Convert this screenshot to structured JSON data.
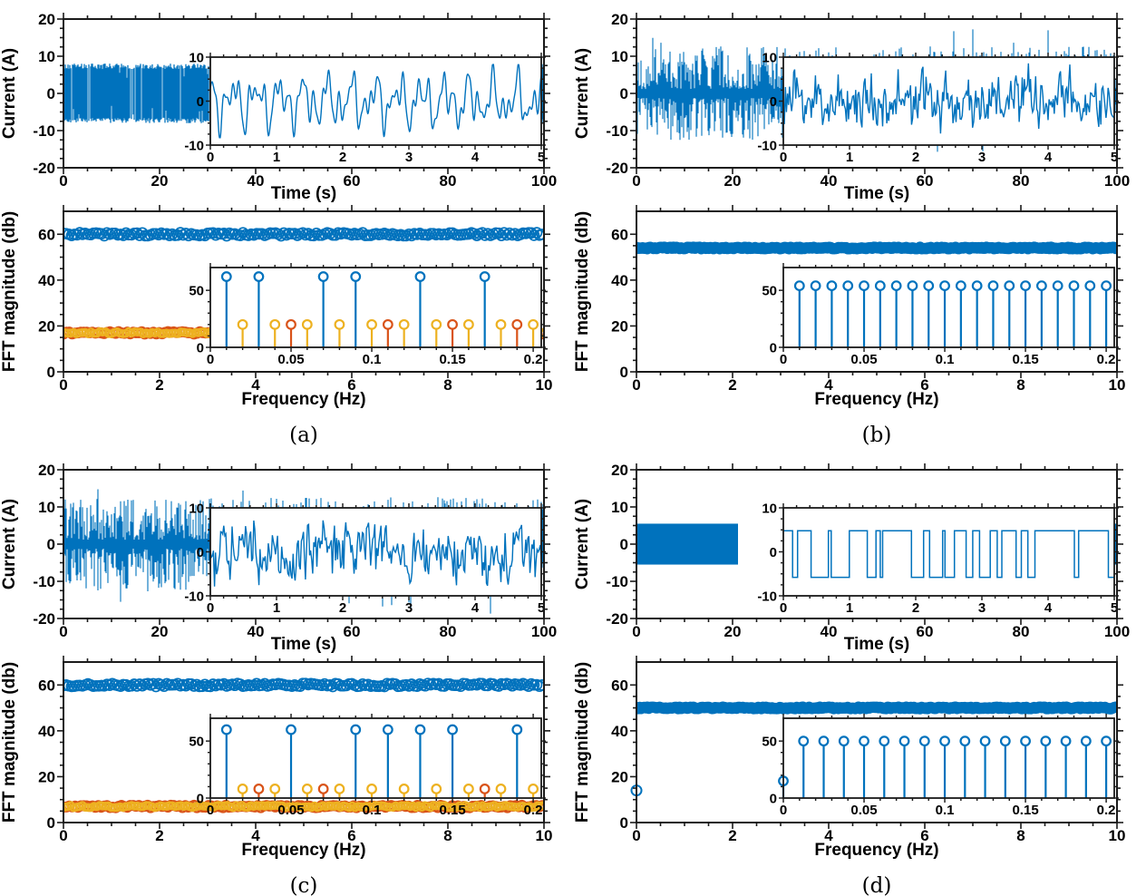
{
  "figure": {
    "background": "#ffffff"
  },
  "colors": {
    "blue": "#0072BD",
    "orange": "#D95319",
    "yellow": "#EDB120",
    "axis": "#1a1a1a",
    "text": "#000000"
  },
  "chart_data": [
    {
      "label": "(a)",
      "time": {
        "type": "line",
        "xlabel": "Time (s)",
        "ylabel": "Current (A)",
        "xlim": [
          0,
          100
        ],
        "ylim": [
          -20,
          20
        ],
        "xticks": [
          0,
          20,
          40,
          60,
          80,
          100
        ],
        "xtick_labels": [
          "0",
          "20",
          "40",
          "60",
          "80",
          "100"
        ],
        "yticks": [
          -20,
          -10,
          0,
          10,
          20
        ],
        "ytick_labels": [
          "-20",
          "-10",
          "0",
          "10",
          "20"
        ],
        "signal": {
          "kind": "band-noise",
          "amp": 8,
          "seed": 11
        },
        "inset": {
          "xlim": [
            0,
            5
          ],
          "ylim": [
            -10,
            10
          ],
          "xticks": [
            0,
            1,
            2,
            3,
            4,
            5
          ],
          "xtick_labels": [
            "0",
            "1",
            "2",
            "3",
            "4",
            "5"
          ],
          "yticks": [
            -10,
            0,
            10
          ],
          "ytick_labels": [
            "-10",
            "0",
            "10"
          ],
          "signal": {
            "kind": "multisine",
            "seed": 12,
            "clip": 8.3,
            "components": [
              [
                3.3,
                2.8
              ],
              [
                2.7,
                5.2
              ],
              [
                2.0,
                8.1
              ],
              [
                1.2,
                12.5
              ]
            ]
          }
        }
      },
      "fft": {
        "type": "stem",
        "xlabel": "Frequency (Hz)",
        "ylabel": "FFT magnitude (db)",
        "xlim": [
          0,
          10
        ],
        "ylim": [
          0,
          70
        ],
        "xticks": [
          0,
          2,
          4,
          6,
          8,
          10
        ],
        "xtick_labels": [
          "0",
          "2",
          "4",
          "6",
          "8",
          "10"
        ],
        "yticks": [
          0,
          20,
          40,
          60
        ],
        "ytick_labels": [
          "0",
          "20",
          "40",
          "60"
        ],
        "bands": [
          {
            "level": 60,
            "style": "speckled"
          },
          {
            "level": 17,
            "style": "mixed"
          }
        ],
        "markers": [],
        "inset": {
          "xlim": [
            0,
            0.205
          ],
          "ylim": [
            0,
            70
          ],
          "xticks": [
            0,
            0.05,
            0.1,
            0.15,
            0.2
          ],
          "xtick_labels": [
            "0",
            "0.05",
            "0.1",
            "0.15",
            "0.2"
          ],
          "yticks": [
            0,
            50
          ],
          "ytick_labels": [
            "0",
            "50"
          ],
          "stems": [
            [
              0.01,
              62,
              "blue"
            ],
            [
              0.02,
              20,
              "yellow"
            ],
            [
              0.03,
              62,
              "blue"
            ],
            [
              0.04,
              20,
              "yellow"
            ],
            [
              0.05,
              20,
              "orange"
            ],
            [
              0.06,
              20,
              "yellow"
            ],
            [
              0.07,
              62,
              "blue"
            ],
            [
              0.08,
              20,
              "yellow"
            ],
            [
              0.09,
              62,
              "blue"
            ],
            [
              0.1,
              20,
              "yellow"
            ],
            [
              0.11,
              20,
              "orange"
            ],
            [
              0.12,
              20,
              "yellow"
            ],
            [
              0.13,
              62,
              "blue"
            ],
            [
              0.14,
              20,
              "yellow"
            ],
            [
              0.15,
              20,
              "orange"
            ],
            [
              0.16,
              20,
              "yellow"
            ],
            [
              0.17,
              62,
              "blue"
            ],
            [
              0.18,
              20,
              "yellow"
            ],
            [
              0.19,
              20,
              "orange"
            ],
            [
              0.2,
              20,
              "yellow"
            ]
          ]
        }
      }
    },
    {
      "label": "(b)",
      "time": {
        "type": "line",
        "xlabel": "Time (s)",
        "ylabel": "Current (A)",
        "xlim": [
          0,
          100
        ],
        "ylim": [
          -20,
          20
        ],
        "xticks": [
          0,
          20,
          40,
          60,
          80,
          100
        ],
        "xtick_labels": [
          "0",
          "20",
          "40",
          "60",
          "80",
          "100"
        ],
        "yticks": [
          -20,
          -10,
          0,
          10,
          20
        ],
        "ytick_labels": [
          "-20",
          "-10",
          "0",
          "10",
          "20"
        ],
        "signal": {
          "kind": "noise",
          "spread": 10,
          "spike": 18,
          "seed": 22
        },
        "inset": {
          "xlim": [
            0,
            5
          ],
          "ylim": [
            -10,
            10
          ],
          "xticks": [
            0,
            1,
            2,
            3,
            4,
            5
          ],
          "xtick_labels": [
            "0",
            "1",
            "2",
            "3",
            "4",
            "5"
          ],
          "yticks": [
            -10,
            0,
            10
          ],
          "ytick_labels": [
            "-10",
            "0",
            "10"
          ],
          "signal": {
            "kind": "noisy-line",
            "amp": 9.7,
            "seed": 23
          }
        }
      },
      "fft": {
        "type": "stem",
        "xlabel": "Frequency (Hz)",
        "ylabel": "FFT magnitude (db)",
        "xlim": [
          0,
          10
        ],
        "ylim": [
          0,
          70
        ],
        "xticks": [
          0,
          2,
          4,
          6,
          8,
          10
        ],
        "xtick_labels": [
          "0",
          "2",
          "4",
          "6",
          "8",
          "10"
        ],
        "yticks": [
          0,
          20,
          40,
          60
        ],
        "ytick_labels": [
          "0",
          "20",
          "40",
          "60"
        ],
        "bands": [
          {
            "level": 54,
            "style": "solid"
          }
        ],
        "markers": [],
        "inset": {
          "xlim": [
            0,
            0.205
          ],
          "ylim": [
            0,
            70
          ],
          "xticks": [
            0,
            0.05,
            0.1,
            0.15,
            0.2
          ],
          "xtick_labels": [
            "0",
            "0.05",
            "0.1",
            "0.15",
            "0.2"
          ],
          "yticks": [
            0,
            50
          ],
          "ytick_labels": [
            "0",
            "50"
          ],
          "stems": [
            [
              0.01,
              54,
              "blue"
            ],
            [
              0.02,
              54,
              "blue"
            ],
            [
              0.03,
              54,
              "blue"
            ],
            [
              0.04,
              54,
              "blue"
            ],
            [
              0.05,
              54,
              "blue"
            ],
            [
              0.06,
              54,
              "blue"
            ],
            [
              0.07,
              54,
              "blue"
            ],
            [
              0.08,
              54,
              "blue"
            ],
            [
              0.09,
              54,
              "blue"
            ],
            [
              0.1,
              54,
              "blue"
            ],
            [
              0.11,
              54,
              "blue"
            ],
            [
              0.12,
              54,
              "blue"
            ],
            [
              0.13,
              54,
              "blue"
            ],
            [
              0.14,
              54,
              "blue"
            ],
            [
              0.15,
              54,
              "blue"
            ],
            [
              0.16,
              54,
              "blue"
            ],
            [
              0.17,
              54,
              "blue"
            ],
            [
              0.18,
              54,
              "blue"
            ],
            [
              0.19,
              54,
              "blue"
            ],
            [
              0.2,
              54,
              "blue"
            ]
          ]
        }
      }
    },
    {
      "label": "(c)",
      "time": {
        "type": "line",
        "xlabel": "Time (s)",
        "ylabel": "Current (A)",
        "xlim": [
          0,
          100
        ],
        "ylim": [
          -20,
          20
        ],
        "xticks": [
          0,
          20,
          40,
          60,
          80,
          100
        ],
        "xtick_labels": [
          "0",
          "20",
          "40",
          "60",
          "80",
          "100"
        ],
        "yticks": [
          -20,
          -10,
          0,
          10,
          20
        ],
        "ytick_labels": [
          "-20",
          "-10",
          "0",
          "10",
          "20"
        ],
        "signal": {
          "kind": "noise",
          "spread": 10,
          "spike": 19,
          "seed": 33
        },
        "inset": {
          "xlim": [
            0,
            5
          ],
          "ylim": [
            -10,
            10
          ],
          "xticks": [
            0,
            1,
            2,
            3,
            4,
            5
          ],
          "xtick_labels": [
            "0",
            "1",
            "2",
            "3",
            "4",
            "5"
          ],
          "yticks": [
            -10,
            0,
            10
          ],
          "ytick_labels": [
            "-10",
            "0",
            "10"
          ],
          "signal": {
            "kind": "noisy-line",
            "amp": 9.7,
            "seed": 34
          }
        }
      },
      "fft": {
        "type": "stem",
        "xlabel": "Frequency (Hz)",
        "ylabel": "FFT magnitude (db)",
        "xlim": [
          0,
          10
        ],
        "ylim": [
          0,
          70
        ],
        "xticks": [
          0,
          2,
          4,
          6,
          8,
          10
        ],
        "xtick_labels": [
          "0",
          "2",
          "4",
          "6",
          "8",
          "10"
        ],
        "yticks": [
          0,
          20,
          40,
          60
        ],
        "ytick_labels": [
          "0",
          "20",
          "40",
          "60"
        ],
        "bands": [
          {
            "level": 60,
            "style": "speckled"
          },
          {
            "level": 7,
            "style": "mixed"
          }
        ],
        "markers": [],
        "inset": {
          "xlim": [
            0,
            0.205
          ],
          "ylim": [
            0,
            70
          ],
          "xticks": [
            0,
            0.05,
            0.1,
            0.15,
            0.2
          ],
          "xtick_labels": [
            "0",
            "0.05",
            "0.1",
            "0.15",
            "0.2"
          ],
          "yticks": [
            0,
            50
          ],
          "ytick_labels": [
            "0",
            "50"
          ],
          "stems": [
            [
              0.01,
              60,
              "blue"
            ],
            [
              0.02,
              8,
              "yellow"
            ],
            [
              0.03,
              8,
              "orange"
            ],
            [
              0.04,
              8,
              "yellow"
            ],
            [
              0.05,
              60,
              "blue"
            ],
            [
              0.06,
              8,
              "yellow"
            ],
            [
              0.07,
              8,
              "orange"
            ],
            [
              0.08,
              8,
              "yellow"
            ],
            [
              0.09,
              60,
              "blue"
            ],
            [
              0.1,
              8,
              "yellow"
            ],
            [
              0.11,
              60,
              "blue"
            ],
            [
              0.12,
              8,
              "yellow"
            ],
            [
              0.13,
              60,
              "blue"
            ],
            [
              0.14,
              8,
              "yellow"
            ],
            [
              0.15,
              60,
              "blue"
            ],
            [
              0.16,
              8,
              "yellow"
            ],
            [
              0.17,
              8,
              "orange"
            ],
            [
              0.18,
              8,
              "yellow"
            ],
            [
              0.19,
              60,
              "blue"
            ],
            [
              0.2,
              8,
              "yellow"
            ]
          ]
        }
      }
    },
    {
      "label": "(d)",
      "time": {
        "type": "line",
        "xlabel": "Time (s)",
        "ylabel": "Current (A)",
        "xlim": [
          0,
          100
        ],
        "ylim": [
          -20,
          20
        ],
        "xticks": [
          0,
          20,
          40,
          60,
          80,
          100
        ],
        "xtick_labels": [
          "0",
          "20",
          "40",
          "60",
          "80",
          "100"
        ],
        "yticks": [
          -20,
          -10,
          0,
          10,
          20
        ],
        "ytick_labels": [
          "-20",
          "-10",
          "0",
          "10",
          "20"
        ],
        "signal": {
          "kind": "solid-band",
          "hi": 5.5,
          "lo": -5.5
        },
        "inset": {
          "label_gutter": true,
          "xlim": [
            0,
            5
          ],
          "ylim": [
            -10,
            10
          ],
          "xticks": [
            0,
            1,
            2,
            3,
            4,
            5
          ],
          "xtick_labels": [
            "0",
            "1",
            "2",
            "3",
            "4",
            "5"
          ],
          "yticks": [
            -10,
            0,
            10
          ],
          "ytick_labels": [
            "-10",
            "0",
            "10"
          ],
          "signal": {
            "kind": "square",
            "hi": 4.8,
            "lo": -5.8,
            "seed": 45
          }
        }
      },
      "fft": {
        "type": "stem",
        "xlabel": "Frequency (Hz)",
        "ylabel": "FFT magnitude (db)",
        "xlim": [
          0,
          10
        ],
        "ylim": [
          0,
          70
        ],
        "xticks": [
          0,
          2,
          4,
          6,
          8,
          10
        ],
        "xtick_labels": [
          "0",
          "2",
          "4",
          "6",
          "8",
          "10"
        ],
        "yticks": [
          0,
          20,
          40,
          60
        ],
        "ytick_labels": [
          "0",
          "20",
          "40",
          "60"
        ],
        "bands": [
          {
            "level": 50,
            "style": "solid"
          }
        ],
        "markers": [
          [
            0,
            14
          ]
        ],
        "inset": {
          "xlim": [
            0,
            0.205
          ],
          "ylim": [
            0,
            70
          ],
          "xticks": [
            0,
            0.05,
            0.1,
            0.15,
            0.2
          ],
          "xtick_labels": [
            "0",
            "0.05",
            "0.1",
            "0.15",
            "0.2"
          ],
          "yticks": [
            0,
            50
          ],
          "ytick_labels": [
            "0",
            "50"
          ],
          "stems": [
            [
              0,
              15,
              "blue"
            ],
            [
              0.0125,
              50,
              "blue"
            ],
            [
              0.025,
              50,
              "blue"
            ],
            [
              0.0375,
              50,
              "blue"
            ],
            [
              0.05,
              50,
              "blue"
            ],
            [
              0.0625,
              50,
              "blue"
            ],
            [
              0.075,
              50,
              "blue"
            ],
            [
              0.0875,
              50,
              "blue"
            ],
            [
              0.1,
              50,
              "blue"
            ],
            [
              0.1125,
              50,
              "blue"
            ],
            [
              0.125,
              50,
              "blue"
            ],
            [
              0.1375,
              50,
              "blue"
            ],
            [
              0.15,
              50,
              "blue"
            ],
            [
              0.1625,
              50,
              "blue"
            ],
            [
              0.175,
              50,
              "blue"
            ],
            [
              0.1875,
              50,
              "blue"
            ],
            [
              0.2,
              50,
              "blue"
            ]
          ]
        }
      }
    }
  ]
}
